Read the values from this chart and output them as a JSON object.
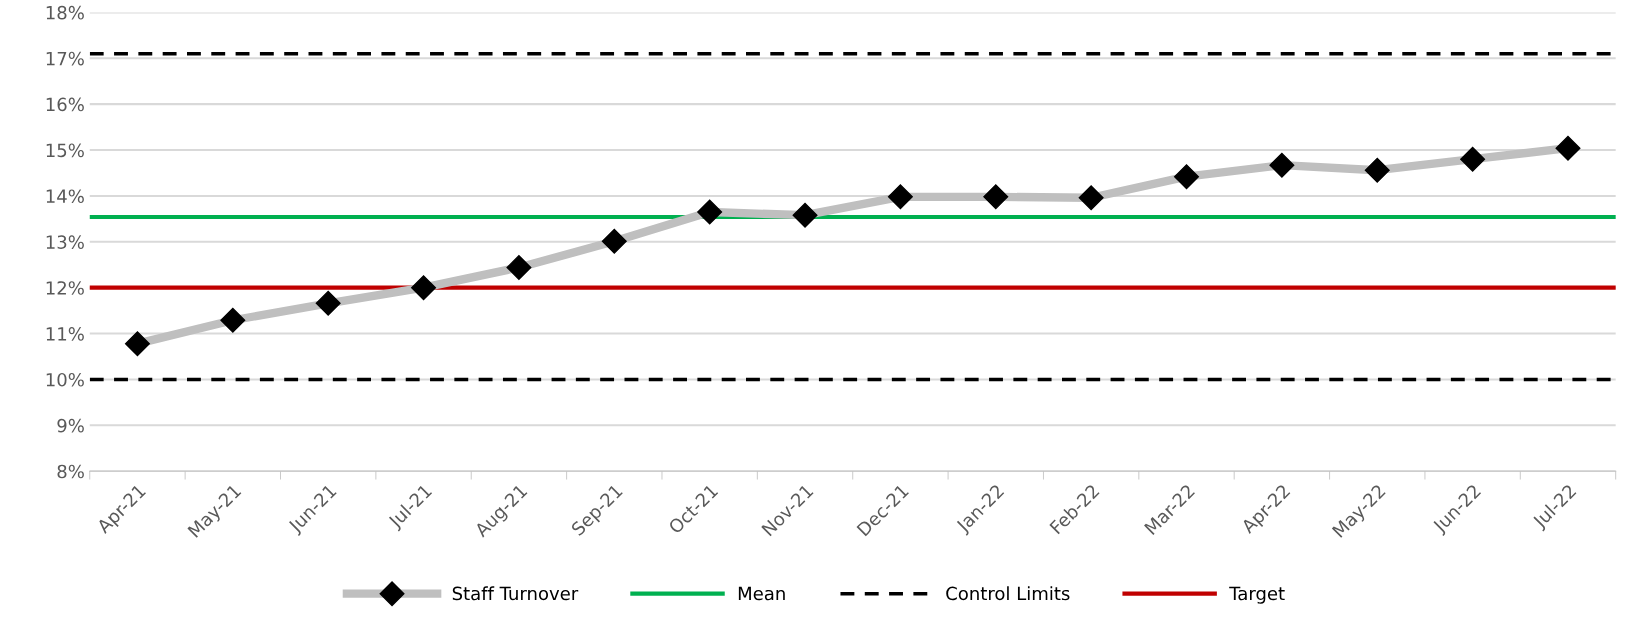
{
  "chart_data": {
    "type": "line",
    "categories": [
      "Apr-21",
      "May-21",
      "Jun-21",
      "Jul-21",
      "Aug-21",
      "Sep-21",
      "Oct-21",
      "Nov-21",
      "Dec-21",
      "Jan-22",
      "Feb-22",
      "Mar-22",
      "Apr-22",
      "May-22",
      "Jun-22",
      "Jul-22"
    ],
    "series": [
      {
        "name": "Staff Turnover",
        "color": "#bfbfbf",
        "marker": "diamond",
        "line_style": "solid",
        "values": [
          10.78,
          11.29,
          11.66,
          12.0,
          12.44,
          13.01,
          13.65,
          13.58,
          13.98,
          13.98,
          13.96,
          14.42,
          14.67,
          14.56,
          14.8,
          15.04
        ]
      }
    ],
    "ref_lines": [
      {
        "axis": "y",
        "value": 13.54,
        "label": "Mean",
        "color": "#00b050",
        "line_style": "solid"
      },
      {
        "axis": "y",
        "value": 17.1,
        "label": "Control Limits",
        "color": "#000000",
        "line_style": "dashed"
      },
      {
        "axis": "y",
        "value": 10.0,
        "label": null,
        "color": "#000000",
        "line_style": "dashed"
      },
      {
        "axis": "y",
        "value": 12.0,
        "label": "Target",
        "color": "#c00000",
        "line_style": "solid"
      }
    ],
    "ylim": [
      8,
      18
    ],
    "yticks": [
      {
        "value": 8,
        "label": "8%"
      },
      {
        "value": 9,
        "label": "9%"
      },
      {
        "value": 10,
        "label": "10%"
      },
      {
        "value": 11,
        "label": "11%"
      },
      {
        "value": 12,
        "label": "12%"
      },
      {
        "value": 13,
        "label": "13%"
      },
      {
        "value": 14,
        "label": "14%"
      },
      {
        "value": 15,
        "label": "15%"
      },
      {
        "value": 16,
        "label": "16%"
      },
      {
        "value": 17,
        "label": "17%"
      },
      {
        "value": 18,
        "label": "18%"
      }
    ],
    "grid": "y",
    "legend": "bottom"
  }
}
